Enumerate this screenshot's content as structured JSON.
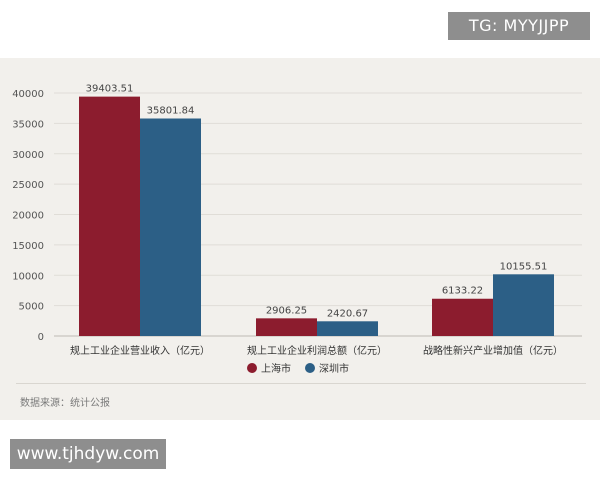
{
  "watermarks": {
    "top_right": "TG: MYYJJPP",
    "bottom_left": "www.tjhdyw.com"
  },
  "source_note": "数据来源：统计公报",
  "chart_data": {
    "type": "bar",
    "categories": [
      "规上工业企业营业收入（亿元）",
      "规上工业企业利润总额（亿元）",
      "战略性新兴产业增加值（亿元）"
    ],
    "series": [
      {
        "name": "上海市",
        "color": "#8c1c2e",
        "values": [
          39403.51,
          2906.25,
          6133.22
        ],
        "labels": [
          "39403.51",
          "2906.25",
          "6133.22"
        ]
      },
      {
        "name": "深圳市",
        "color": "#2c5f86",
        "values": [
          35801.84,
          2420.67,
          10155.51
        ],
        "labels": [
          "35801.84",
          "2420.67",
          "10155.51"
        ]
      }
    ],
    "ylim": [
      0,
      40000
    ],
    "yticks": [
      "0",
      "5000",
      "10000",
      "15000",
      "20000",
      "25000",
      "30000",
      "35000",
      "40000"
    ],
    "grid": true,
    "legend_position": "bottom-center"
  }
}
